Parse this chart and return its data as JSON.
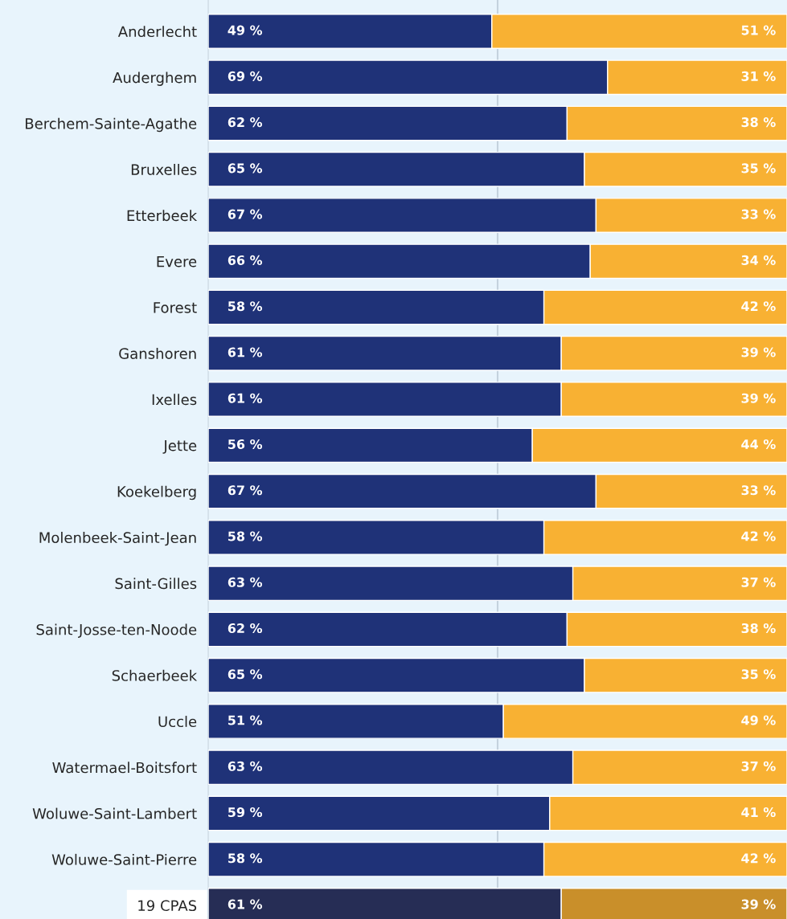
{
  "chart_data": {
    "type": "bar",
    "orientation": "horizontal",
    "stacked": true,
    "categories": [
      "Anderlecht",
      "Auderghem",
      "Berchem-Sainte-Agathe",
      "Bruxelles",
      "Etterbeek",
      "Evere",
      "Forest",
      "Ganshoren",
      "Ixelles",
      "Jette",
      "Koekelberg",
      "Molenbeek-Saint-Jean",
      "Saint-Gilles",
      "Saint-Josse-ten-Noode",
      "Schaerbeek",
      "Uccle",
      "Watermael-Boitsfort",
      "Woluwe-Saint-Lambert",
      "Woluwe-Saint-Pierre",
      "19 CPAS"
    ],
    "series": [
      {
        "colors": [
          "#1f3278",
          "#1f3278",
          "#1f3278",
          "#1f3278",
          "#1f3278",
          "#1f3278",
          "#1f3278",
          "#1f3278",
          "#1f3278",
          "#1f3278",
          "#1f3278",
          "#1f3278",
          "#1f3278",
          "#1f3278",
          "#1f3278",
          "#1f3278",
          "#1f3278",
          "#1f3278",
          "#1f3278",
          "#262d55"
        ],
        "values": [
          49,
          69,
          62,
          65,
          67,
          66,
          58,
          61,
          61,
          56,
          67,
          58,
          63,
          62,
          65,
          51,
          63,
          59,
          58,
          61
        ],
        "value_labels": [
          "49 %",
          "69 %",
          "62 %",
          "65 %",
          "67 %",
          "66 %",
          "58 %",
          "61 %",
          "61 %",
          "56 %",
          "67 %",
          "58 %",
          "63 %",
          "62 %",
          "65 %",
          "51 %",
          "63 %",
          "59 %",
          "58 %",
          "61 %"
        ]
      },
      {
        "colors": [
          "#f8b133",
          "#f8b133",
          "#f8b133",
          "#f8b133",
          "#f8b133",
          "#f8b133",
          "#f8b133",
          "#f8b133",
          "#f8b133",
          "#f8b133",
          "#f8b133",
          "#f8b133",
          "#f8b133",
          "#f8b133",
          "#f8b133",
          "#f8b133",
          "#f8b133",
          "#f8b133",
          "#f8b133",
          "#c98f2a"
        ],
        "values": [
          51,
          31,
          38,
          35,
          33,
          34,
          42,
          39,
          39,
          44,
          33,
          42,
          37,
          38,
          35,
          49,
          37,
          41,
          42,
          39
        ],
        "value_labels": [
          "51 %",
          "31 %",
          "38 %",
          "35 %",
          "33 %",
          "34 %",
          "42 %",
          "39 %",
          "39 %",
          "44 %",
          "33 %",
          "42 %",
          "37 %",
          "38 %",
          "35 %",
          "49 %",
          "37 %",
          "41 %",
          "42 %",
          "39 %"
        ]
      }
    ],
    "xlim": [
      0,
      100
    ],
    "ref_lines": [
      {
        "axis": "x",
        "value": 50,
        "color": "#c4d2de"
      }
    ],
    "tick_labels": "y",
    "legend": false
  }
}
